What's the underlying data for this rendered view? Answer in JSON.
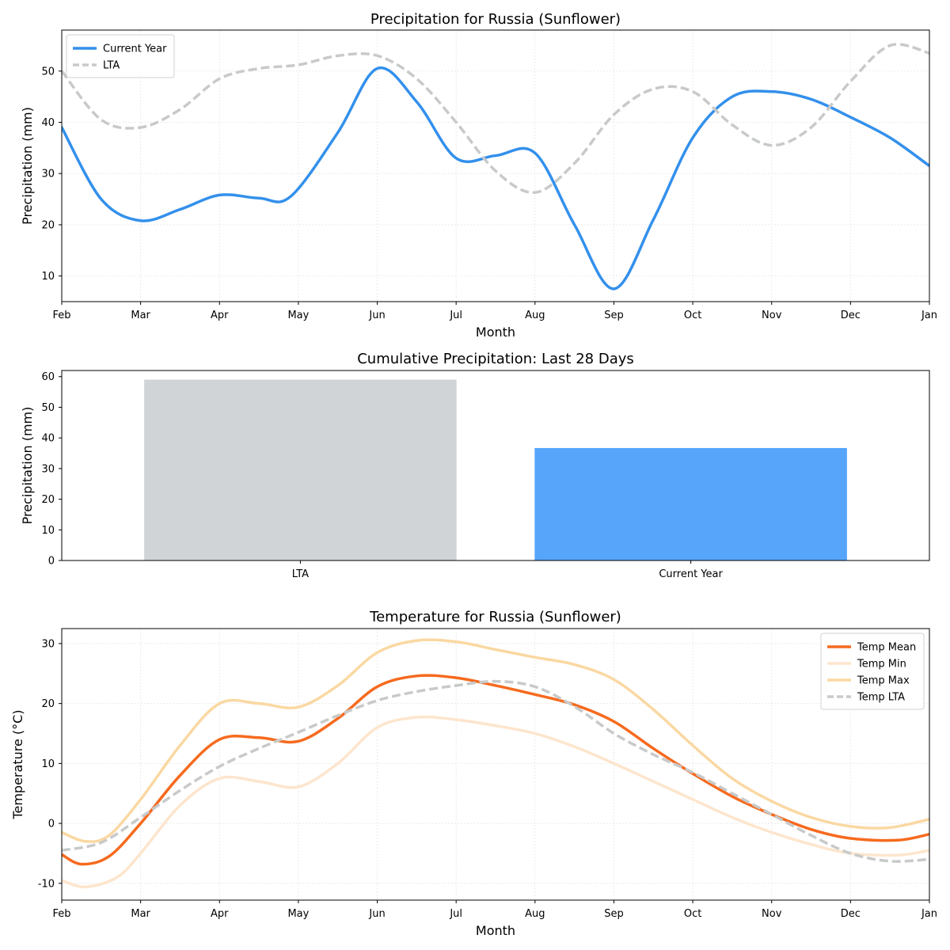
{
  "chart_data": [
    {
      "type": "line",
      "title": "Precipitation for Russia (Sunflower)",
      "xlabel": "Month",
      "ylabel": "Precipitation (mm)",
      "categories": [
        "Feb",
        "Mar",
        "Apr",
        "May",
        "Jun",
        "Jul",
        "Aug",
        "Sep",
        "Oct",
        "Nov",
        "Dec",
        "Jan"
      ],
      "ylim": [
        5,
        58
      ],
      "yticks": [
        10,
        20,
        30,
        40,
        50
      ],
      "grid": true,
      "legend": "top-left",
      "series": [
        {
          "name": "Current Year",
          "color": "#3390ec",
          "style": "solid",
          "points": [
            [
              0,
              39
            ],
            [
              0.5,
              25
            ],
            [
              1,
              20.8
            ],
            [
              1.5,
              23
            ],
            [
              2,
              25.8
            ],
            [
              2.5,
              25.2
            ],
            [
              2.9,
              25.5
            ],
            [
              3.5,
              38
            ],
            [
              4,
              50.5
            ],
            [
              4.5,
              44
            ],
            [
              5,
              33
            ],
            [
              5.5,
              33.5
            ],
            [
              6,
              34
            ],
            [
              6.5,
              20
            ],
            [
              7,
              7.5
            ],
            [
              7.5,
              21
            ],
            [
              8,
              37
            ],
            [
              8.5,
              45
            ],
            [
              9,
              46
            ],
            [
              9.5,
              44.5
            ],
            [
              10,
              41
            ],
            [
              10.5,
              37
            ],
            [
              11,
              31.5
            ]
          ]
        },
        {
          "name": "LTA",
          "color": "#c8caca",
          "style": "dashed",
          "points": [
            [
              0,
              50
            ],
            [
              0.5,
              40.5
            ],
            [
              1,
              39
            ],
            [
              1.5,
              42.5
            ],
            [
              2,
              48.5
            ],
            [
              2.5,
              50.5
            ],
            [
              3,
              51.2
            ],
            [
              3.5,
              53
            ],
            [
              4,
              53
            ],
            [
              4.5,
              48.5
            ],
            [
              5,
              40
            ],
            [
              5.5,
              30.5
            ],
            [
              6,
              26.3
            ],
            [
              6.5,
              32
            ],
            [
              7,
              41.5
            ],
            [
              7.5,
              46.5
            ],
            [
              8,
              46
            ],
            [
              8.5,
              39.5
            ],
            [
              9,
              35.5
            ],
            [
              9.5,
              39
            ],
            [
              10,
              48
            ],
            [
              10.5,
              55
            ],
            [
              11,
              53.5
            ]
          ]
        }
      ]
    },
    {
      "type": "bar",
      "title": "Cumulative Precipitation: Last 28 Days",
      "ylabel": "Precipitation (mm)",
      "categories": [
        "LTA",
        "Current Year"
      ],
      "values": [
        59,
        36.7
      ],
      "colors": [
        "#d1d4d7",
        "#57a5fb"
      ],
      "ylim": [
        0,
        62
      ],
      "yticks": [
        0,
        10,
        20,
        30,
        40,
        50,
        60
      ]
    },
    {
      "type": "line",
      "title": "Temperature for Russia (Sunflower)",
      "xlabel": "Month",
      "ylabel": "Temperature (°C)",
      "categories": [
        "Feb",
        "Mar",
        "Apr",
        "May",
        "Jun",
        "Jul",
        "Aug",
        "Sep",
        "Oct",
        "Nov",
        "Dec",
        "Jan"
      ],
      "ylim": [
        -12.8,
        32.5
      ],
      "yticks": [
        -10,
        0,
        10,
        20,
        30
      ],
      "grid": true,
      "legend": "top-right",
      "series": [
        {
          "name": "Temp Mean",
          "color": "#f66a1e",
          "style": "solid",
          "points": [
            [
              0,
              -5.2
            ],
            [
              0.25,
              -6.8
            ],
            [
              0.6,
              -5.5
            ],
            [
              1,
              0
            ],
            [
              1.5,
              8
            ],
            [
              2,
              14
            ],
            [
              2.5,
              14.3
            ],
            [
              3,
              13.7
            ],
            [
              3.5,
              17.5
            ],
            [
              4,
              22.8
            ],
            [
              4.5,
              24.6
            ],
            [
              5,
              24.3
            ],
            [
              5.5,
              23
            ],
            [
              6,
              21.5
            ],
            [
              6.5,
              19.8
            ],
            [
              7,
              17
            ],
            [
              7.5,
              12.5
            ],
            [
              8,
              8.3
            ],
            [
              8.5,
              4.5
            ],
            [
              9,
              1.5
            ],
            [
              9.5,
              -1
            ],
            [
              10,
              -2.5
            ],
            [
              10.6,
              -2.8
            ],
            [
              11,
              -1.8
            ]
          ]
        },
        {
          "name": "Temp Min",
          "color": "#fde5cd",
          "style": "solid",
          "points": [
            [
              0,
              -9.5
            ],
            [
              0.3,
              -10.6
            ],
            [
              0.7,
              -9
            ],
            [
              1,
              -5
            ],
            [
              1.5,
              3
            ],
            [
              2,
              7.5
            ],
            [
              2.5,
              7
            ],
            [
              3,
              6.1
            ],
            [
              3.5,
              10
            ],
            [
              4,
              16
            ],
            [
              4.5,
              17.7
            ],
            [
              5,
              17.3
            ],
            [
              5.5,
              16.3
            ],
            [
              6,
              15
            ],
            [
              6.5,
              12.8
            ],
            [
              7,
              10
            ],
            [
              7.5,
              7
            ],
            [
              8,
              4
            ],
            [
              8.5,
              1
            ],
            [
              9,
              -1.5
            ],
            [
              9.5,
              -3.5
            ],
            [
              10,
              -5
            ],
            [
              10.6,
              -5.3
            ],
            [
              11,
              -4.5
            ]
          ]
        },
        {
          "name": "Temp Max",
          "color": "#fad8a2",
          "style": "solid",
          "points": [
            [
              0,
              -1.5
            ],
            [
              0.3,
              -3
            ],
            [
              0.6,
              -2
            ],
            [
              1,
              4
            ],
            [
              1.5,
              13
            ],
            [
              2,
              20
            ],
            [
              2.5,
              20
            ],
            [
              3,
              19.4
            ],
            [
              3.5,
              23
            ],
            [
              4,
              28.5
            ],
            [
              4.5,
              30.5
            ],
            [
              5,
              30.3
            ],
            [
              5.5,
              29
            ],
            [
              6,
              27.7
            ],
            [
              6.5,
              26.5
            ],
            [
              7,
              24
            ],
            [
              7.5,
              19
            ],
            [
              8,
              13
            ],
            [
              8.5,
              7.5
            ],
            [
              9,
              3.7
            ],
            [
              9.5,
              1
            ],
            [
              10,
              -0.5
            ],
            [
              10.5,
              -0.7
            ],
            [
              11,
              0.7
            ]
          ]
        },
        {
          "name": "Temp LTA",
          "color": "#c8caca",
          "style": "dashed",
          "points": [
            [
              0,
              -4.5
            ],
            [
              0.5,
              -3.2
            ],
            [
              1,
              1
            ],
            [
              1.5,
              5.5
            ],
            [
              2,
              9.5
            ],
            [
              2.5,
              12.5
            ],
            [
              3,
              15.2
            ],
            [
              3.5,
              18
            ],
            [
              4,
              20.5
            ],
            [
              4.5,
              22
            ],
            [
              5,
              23
            ],
            [
              5.5,
              23.7
            ],
            [
              6,
              22.8
            ],
            [
              6.5,
              19.5
            ],
            [
              7,
              15
            ],
            [
              7.5,
              11.5
            ],
            [
              8,
              8.5
            ],
            [
              8.5,
              5
            ],
            [
              9,
              1.5
            ],
            [
              9.5,
              -2
            ],
            [
              10,
              -5
            ],
            [
              10.5,
              -6.3
            ],
            [
              11,
              -6
            ]
          ]
        }
      ]
    }
  ]
}
